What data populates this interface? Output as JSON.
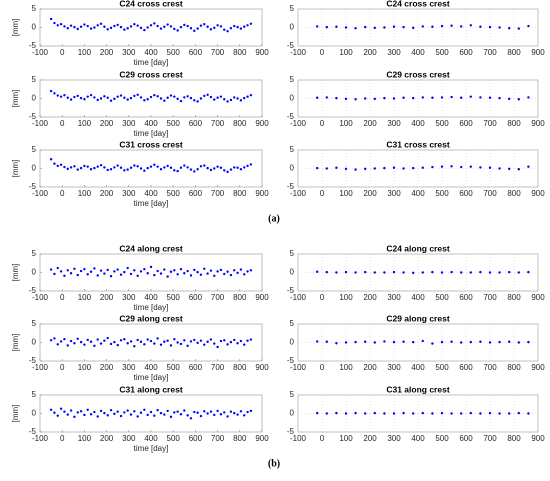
{
  "panel_labels": [
    "(a)",
    "(b)"
  ],
  "chart_data": [
    {
      "type": "scatter",
      "title": "C24 cross crest",
      "xlabel": "time [day]",
      "ylabel": "[mm]",
      "color": "#0000ff",
      "grid": false,
      "xlim": [
        -100,
        900
      ],
      "xticks": [
        -100,
        0,
        100,
        200,
        300,
        400,
        500,
        600,
        700,
        800,
        900
      ],
      "ylim": [
        -5,
        5
      ],
      "yticks": [
        -5,
        0,
        5
      ],
      "x": [
        -50,
        -35,
        -20,
        -5,
        10,
        25,
        40,
        55,
        70,
        85,
        100,
        115,
        130,
        145,
        160,
        175,
        190,
        205,
        220,
        235,
        250,
        265,
        280,
        295,
        310,
        325,
        340,
        355,
        370,
        385,
        400,
        415,
        430,
        445,
        460,
        475,
        490,
        505,
        520,
        535,
        550,
        565,
        580,
        595,
        610,
        625,
        640,
        655,
        670,
        685,
        700,
        715,
        730,
        745,
        760,
        775,
        790,
        805,
        820,
        835,
        850
      ],
      "values": [
        2.3,
        1.2,
        0.6,
        0.9,
        0.3,
        -0.2,
        0.5,
        0.1,
        -0.4,
        0.2,
        0.8,
        0.4,
        -0.3,
        0.0,
        0.6,
        1.0,
        0.2,
        -0.5,
        -0.1,
        0.4,
        0.7,
        0.1,
        -0.6,
        -0.2,
        0.3,
        0.9,
        0.5,
        -0.1,
        -0.7,
        0.0,
        0.6,
        1.1,
        0.4,
        -0.3,
        0.2,
        0.8,
        0.3,
        -0.4,
        -0.8,
        0.1,
        0.7,
        0.4,
        -0.2,
        -0.9,
        -0.3,
        0.5,
        0.9,
        0.2,
        -0.5,
        -0.1,
        0.6,
        0.3,
        -0.6,
        -1.0,
        -0.2,
        0.4,
        0.1,
        -0.3,
        0.2,
        0.6,
        1.0
      ]
    },
    {
      "type": "scatter",
      "title": "C24 cross crest",
      "color": "#0000ff",
      "grid": true,
      "xlim": [
        -100,
        900
      ],
      "xticks": [
        -100,
        0,
        100,
        200,
        300,
        400,
        500,
        600,
        700,
        800,
        900
      ],
      "ylim": [
        -5,
        5
      ],
      "yticks": [
        -5,
        0,
        5
      ],
      "x": [
        -20,
        20,
        60,
        100,
        140,
        180,
        220,
        260,
        300,
        340,
        380,
        420,
        460,
        500,
        540,
        580,
        620,
        660,
        700,
        740,
        780,
        820,
        860
      ],
      "values": [
        0.3,
        0.1,
        0.2,
        0.0,
        -0.2,
        0.1,
        -0.1,
        0.0,
        0.2,
        0.1,
        -0.1,
        0.3,
        0.2,
        0.4,
        0.5,
        0.3,
        0.6,
        0.2,
        0.1,
        0.0,
        -0.2,
        -0.3,
        0.4
      ]
    },
    {
      "type": "scatter",
      "title": "C29 cross crest",
      "xlabel": "time [day]",
      "ylabel": "[mm]",
      "color": "#0000ff",
      "grid": false,
      "xlim": [
        -100,
        900
      ],
      "xticks": [
        -100,
        0,
        100,
        200,
        300,
        400,
        500,
        600,
        700,
        800,
        900
      ],
      "ylim": [
        -5,
        5
      ],
      "yticks": [
        -5,
        0,
        5
      ],
      "x": [
        -50,
        -35,
        -20,
        -5,
        10,
        25,
        40,
        55,
        70,
        85,
        100,
        115,
        130,
        145,
        160,
        175,
        190,
        205,
        220,
        235,
        250,
        265,
        280,
        295,
        310,
        325,
        340,
        355,
        370,
        385,
        400,
        415,
        430,
        445,
        460,
        475,
        490,
        505,
        520,
        535,
        550,
        565,
        580,
        595,
        610,
        625,
        640,
        655,
        670,
        685,
        700,
        715,
        730,
        745,
        760,
        775,
        790,
        805,
        820,
        835,
        850
      ],
      "values": [
        2.0,
        1.4,
        0.8,
        0.5,
        0.9,
        0.2,
        -0.3,
        0.4,
        0.7,
        0.1,
        -0.2,
        0.5,
        0.9,
        0.3,
        -0.4,
        0.0,
        0.6,
        0.2,
        -0.6,
        -0.1,
        0.5,
        0.8,
        0.2,
        -0.3,
        0.1,
        0.7,
        1.0,
        0.3,
        -0.5,
        -0.2,
        0.4,
        0.9,
        0.6,
        0.0,
        -0.6,
        0.2,
        0.8,
        0.5,
        -0.1,
        -0.7,
        0.3,
        0.6,
        0.1,
        -0.5,
        -0.8,
        0.0,
        0.7,
        1.0,
        0.4,
        -0.3,
        0.2,
        0.5,
        -0.2,
        -0.8,
        -0.4,
        0.3,
        0.0,
        -0.5,
        0.1,
        0.5,
        0.9
      ]
    },
    {
      "type": "scatter",
      "title": "C29 cross crest",
      "color": "#0000ff",
      "grid": true,
      "xlim": [
        -100,
        900
      ],
      "xticks": [
        -100,
        0,
        100,
        200,
        300,
        400,
        500,
        600,
        700,
        800,
        900
      ],
      "ylim": [
        -5,
        5
      ],
      "yticks": [
        -5,
        0,
        5
      ],
      "x": [
        -20,
        20,
        60,
        100,
        140,
        180,
        220,
        260,
        300,
        340,
        380,
        420,
        460,
        500,
        540,
        580,
        620,
        660,
        700,
        740,
        780,
        820,
        860
      ],
      "values": [
        0.2,
        0.3,
        0.1,
        -0.1,
        -0.2,
        0.0,
        -0.1,
        0.1,
        0.0,
        0.2,
        0.1,
        0.3,
        0.2,
        0.3,
        0.4,
        0.2,
        0.5,
        0.3,
        0.2,
        0.1,
        -0.1,
        -0.2,
        0.3
      ]
    },
    {
      "type": "scatter",
      "title": "C31 cross crest",
      "xlabel": "time [day]",
      "ylabel": "[mm]",
      "color": "#0000ff",
      "grid": false,
      "xlim": [
        -100,
        900
      ],
      "xticks": [
        -100,
        0,
        100,
        200,
        300,
        400,
        500,
        600,
        700,
        800,
        900
      ],
      "ylim": [
        -5,
        5
      ],
      "yticks": [
        -5,
        0,
        5
      ],
      "x": [
        -50,
        -35,
        -20,
        -5,
        10,
        25,
        40,
        55,
        70,
        85,
        100,
        115,
        130,
        145,
        160,
        175,
        190,
        205,
        220,
        235,
        250,
        265,
        280,
        295,
        310,
        325,
        340,
        355,
        370,
        385,
        400,
        415,
        430,
        445,
        460,
        475,
        490,
        505,
        520,
        535,
        550,
        565,
        580,
        595,
        610,
        625,
        640,
        655,
        670,
        685,
        700,
        715,
        730,
        745,
        760,
        775,
        790,
        805,
        820,
        835,
        850
      ],
      "values": [
        2.5,
        1.3,
        0.7,
        1.0,
        0.4,
        -0.1,
        0.3,
        0.6,
        -0.3,
        0.1,
        0.7,
        0.5,
        -0.2,
        0.1,
        0.5,
        0.9,
        0.3,
        -0.4,
        -0.2,
        0.3,
        0.8,
        0.2,
        -0.5,
        -0.3,
        0.2,
        0.8,
        0.6,
        0.0,
        -0.6,
        0.1,
        0.5,
        1.0,
        0.5,
        -0.2,
        0.3,
        0.7,
        0.2,
        -0.5,
        -0.7,
        0.2,
        0.8,
        0.3,
        -0.3,
        -0.8,
        -0.2,
        0.6,
        0.8,
        0.1,
        -0.4,
        0.0,
        0.5,
        0.2,
        -0.5,
        -0.9,
        -0.3,
        0.3,
        0.2,
        -0.2,
        0.3,
        0.7,
        1.1
      ]
    },
    {
      "type": "scatter",
      "title": "C31 cross crest",
      "color": "#0000ff",
      "grid": true,
      "xlim": [
        -100,
        900
      ],
      "xticks": [
        -100,
        0,
        100,
        200,
        300,
        400,
        500,
        600,
        700,
        800,
        900
      ],
      "ylim": [
        -5,
        5
      ],
      "yticks": [
        -5,
        0,
        5
      ],
      "x": [
        -20,
        20,
        60,
        100,
        140,
        180,
        220,
        260,
        300,
        340,
        380,
        420,
        460,
        500,
        540,
        580,
        620,
        660,
        700,
        740,
        780,
        820,
        860
      ],
      "values": [
        0.1,
        0.0,
        0.2,
        -0.1,
        -0.3,
        -0.1,
        0.0,
        0.1,
        0.2,
        0.0,
        0.1,
        0.2,
        0.4,
        0.5,
        0.6,
        0.4,
        0.5,
        0.3,
        0.2,
        0.0,
        -0.1,
        -0.2,
        0.5
      ]
    },
    {
      "type": "scatter",
      "title": "C24 along crest",
      "xlabel": "time [day]",
      "ylabel": "[mm]",
      "color": "#0000ff",
      "grid": false,
      "xlim": [
        -100,
        900
      ],
      "xticks": [
        -100,
        0,
        100,
        200,
        300,
        400,
        500,
        600,
        700,
        800,
        900
      ],
      "ylim": [
        -5,
        5
      ],
      "yticks": [
        -5,
        0,
        5
      ],
      "x": [
        -50,
        -35,
        -20,
        -5,
        10,
        25,
        40,
        55,
        70,
        85,
        100,
        115,
        130,
        145,
        160,
        175,
        190,
        205,
        220,
        235,
        250,
        265,
        280,
        295,
        310,
        325,
        340,
        355,
        370,
        385,
        400,
        415,
        430,
        445,
        460,
        475,
        490,
        505,
        520,
        535,
        550,
        565,
        580,
        595,
        610,
        625,
        640,
        655,
        670,
        685,
        700,
        715,
        730,
        745,
        760,
        775,
        790,
        805,
        820,
        835,
        850
      ],
      "values": [
        0.8,
        -0.4,
        1.2,
        0.3,
        -0.9,
        0.6,
        -0.2,
        1.0,
        -0.7,
        0.4,
        0.9,
        -0.5,
        0.2,
        1.1,
        -0.8,
        0.5,
        -0.3,
        0.7,
        -1.0,
        0.3,
        0.8,
        -0.6,
        0.1,
        1.2,
        -0.4,
        0.6,
        -0.9,
        0.3,
        0.9,
        -0.2,
        1.5,
        -0.7,
        0.4,
        -0.3,
        0.8,
        -1.1,
        0.2,
        0.6,
        -0.5,
        0.9,
        -0.2,
        0.4,
        -0.8,
        0.7,
        0.1,
        -0.6,
        1.0,
        -0.3,
        0.5,
        -0.9,
        0.3,
        0.7,
        -0.4,
        0.2,
        -0.7,
        0.6,
        -0.1,
        0.8,
        -0.5,
        0.3,
        0.6
      ]
    },
    {
      "type": "scatter",
      "title": "C24 along crest",
      "color": "#0000ff",
      "grid": true,
      "xlim": [
        -100,
        900
      ],
      "xticks": [
        -100,
        0,
        100,
        200,
        300,
        400,
        500,
        600,
        700,
        800,
        900
      ],
      "ylim": [
        -5,
        5
      ],
      "yticks": [
        -5,
        0,
        5
      ],
      "x": [
        -20,
        20,
        60,
        100,
        140,
        180,
        220,
        260,
        300,
        340,
        380,
        420,
        460,
        500,
        540,
        580,
        620,
        660,
        700,
        740,
        780,
        820,
        860
      ],
      "values": [
        0.2,
        0.1,
        0.0,
        0.1,
        0.0,
        0.1,
        0.0,
        0.0,
        0.1,
        0.0,
        -0.1,
        0.0,
        0.1,
        0.0,
        0.1,
        0.0,
        0.0,
        0.1,
        0.0,
        0.0,
        0.1,
        0.0,
        0.1
      ]
    },
    {
      "type": "scatter",
      "title": "C29 along crest",
      "xlabel": "time [day]",
      "ylabel": "[mm]",
      "color": "#0000ff",
      "grid": false,
      "xlim": [
        -100,
        900
      ],
      "xticks": [
        -100,
        0,
        100,
        200,
        300,
        400,
        500,
        600,
        700,
        800,
        900
      ],
      "ylim": [
        -5,
        5
      ],
      "yticks": [
        -5,
        0,
        5
      ],
      "x": [
        -50,
        -35,
        -20,
        -5,
        10,
        25,
        40,
        55,
        70,
        85,
        100,
        115,
        130,
        145,
        160,
        175,
        190,
        205,
        220,
        235,
        250,
        265,
        280,
        295,
        310,
        325,
        340,
        355,
        370,
        385,
        400,
        415,
        430,
        445,
        460,
        475,
        490,
        505,
        520,
        535,
        550,
        565,
        580,
        595,
        610,
        625,
        640,
        655,
        670,
        685,
        700,
        715,
        730,
        745,
        760,
        775,
        790,
        805,
        820,
        835,
        850
      ],
      "values": [
        0.6,
        1.1,
        -0.5,
        0.3,
        0.9,
        -0.8,
        0.4,
        -0.2,
        1.0,
        0.1,
        -0.6,
        0.7,
        0.2,
        -0.9,
        0.8,
        -0.3,
        0.5,
        1.2,
        -0.4,
        0.1,
        -0.7,
        0.6,
        0.9,
        -0.2,
        0.3,
        -1.0,
        0.7,
        0.2,
        -0.5,
        0.8,
        0.4,
        -0.3,
        1.1,
        -0.6,
        0.2,
        0.5,
        -0.8,
        0.9,
        0.0,
        -0.4,
        0.6,
        -0.9,
        0.3,
        0.7,
        -0.1,
        0.5,
        -0.6,
        0.2,
        0.8,
        -0.3,
        -1.2,
        0.4,
        0.6,
        -0.5,
        0.1,
        0.7,
        -0.2,
        0.4,
        -0.6,
        0.5,
        0.8
      ]
    },
    {
      "type": "scatter",
      "title": "C29 along crest",
      "color": "#0000ff",
      "grid": true,
      "xlim": [
        -100,
        900
      ],
      "xticks": [
        -100,
        0,
        100,
        200,
        300,
        400,
        500,
        600,
        700,
        800,
        900
      ],
      "ylim": [
        -5,
        5
      ],
      "yticks": [
        -5,
        0,
        5
      ],
      "x": [
        -20,
        20,
        60,
        100,
        140,
        180,
        220,
        260,
        300,
        340,
        380,
        420,
        460,
        500,
        540,
        580,
        620,
        660,
        700,
        740,
        780,
        820,
        860
      ],
      "values": [
        0.3,
        0.2,
        -0.2,
        0.0,
        0.1,
        0.2,
        0.0,
        0.3,
        0.1,
        0.2,
        0.1,
        0.4,
        -0.3,
        0.1,
        0.2,
        0.0,
        0.1,
        0.2,
        0.0,
        0.1,
        0.2,
        0.0,
        0.1
      ]
    },
    {
      "type": "scatter",
      "title": "C31 along crest",
      "xlabel": "time [day]",
      "ylabel": "[mm]",
      "color": "#0000ff",
      "grid": false,
      "xlim": [
        -100,
        900
      ],
      "xticks": [
        -100,
        0,
        100,
        200,
        300,
        400,
        500,
        600,
        700,
        800,
        900
      ],
      "ylim": [
        -5,
        5
      ],
      "yticks": [
        -5,
        0,
        5
      ],
      "x": [
        -50,
        -35,
        -20,
        -5,
        10,
        25,
        40,
        55,
        70,
        85,
        100,
        115,
        130,
        145,
        160,
        175,
        190,
        205,
        220,
        235,
        250,
        265,
        280,
        295,
        310,
        325,
        340,
        355,
        370,
        385,
        400,
        415,
        430,
        445,
        460,
        475,
        490,
        505,
        520,
        535,
        550,
        565,
        580,
        595,
        610,
        625,
        640,
        655,
        670,
        685,
        700,
        715,
        730,
        745,
        760,
        775,
        790,
        805,
        820,
        835,
        850
      ],
      "values": [
        1.0,
        0.2,
        -0.6,
        1.3,
        0.5,
        -0.3,
        0.8,
        -0.9,
        0.3,
        0.6,
        -0.4,
        1.0,
        -0.2,
        0.4,
        -0.8,
        0.7,
        0.1,
        -0.5,
        0.9,
        -0.1,
        0.5,
        -0.7,
        0.3,
        0.8,
        -0.3,
        0.6,
        -0.8,
        0.2,
        1.0,
        -0.4,
        0.4,
        -0.6,
        0.9,
        0.1,
        -0.3,
        0.7,
        -0.9,
        0.3,
        0.5,
        -0.2,
        0.8,
        -0.5,
        -1.3,
        0.4,
        0.2,
        -0.7,
        0.6,
        0.0,
        0.5,
        -0.4,
        0.7,
        -0.2,
        0.3,
        -0.8,
        0.5,
        0.1,
        -0.3,
        0.6,
        -0.5,
        0.4,
        0.7
      ]
    },
    {
      "type": "scatter",
      "title": "C31 along crest",
      "color": "#0000ff",
      "grid": true,
      "xlim": [
        -100,
        900
      ],
      "xticks": [
        -100,
        0,
        100,
        200,
        300,
        400,
        500,
        600,
        700,
        800,
        900
      ],
      "ylim": [
        -5,
        5
      ],
      "yticks": [
        -5,
        0,
        5
      ],
      "x": [
        -20,
        20,
        60,
        100,
        140,
        180,
        220,
        260,
        300,
        340,
        380,
        420,
        460,
        500,
        540,
        580,
        620,
        660,
        700,
        740,
        780,
        820,
        860
      ],
      "values": [
        0.1,
        0.0,
        0.1,
        0.0,
        0.1,
        0.0,
        0.1,
        0.0,
        0.0,
        0.1,
        0.0,
        0.1,
        0.0,
        0.1,
        0.0,
        0.0,
        0.1,
        0.0,
        0.1,
        0.0,
        0.0,
        0.1,
        0.0
      ]
    }
  ]
}
